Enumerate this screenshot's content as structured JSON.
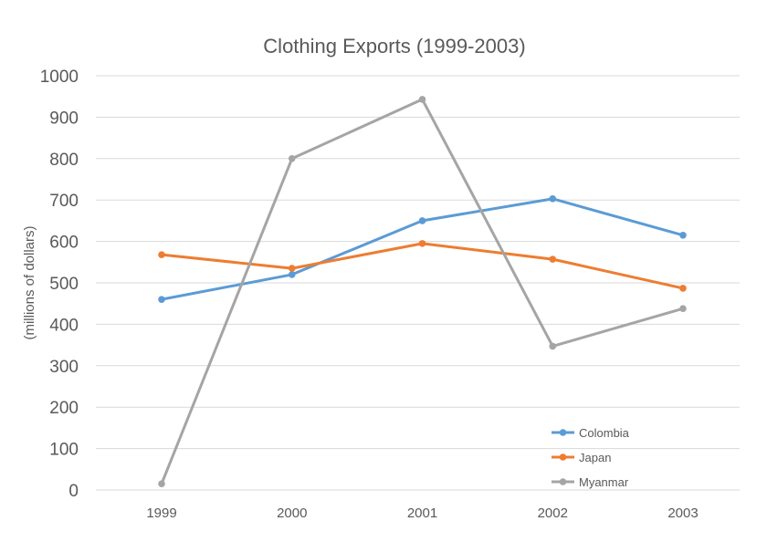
{
  "chart_data": {
    "type": "line",
    "title": "Clothing Exports (1999-2003)",
    "xlabel": "",
    "ylabel": "(millions of dollars)",
    "categories": [
      "1999",
      "2000",
      "2001",
      "2002",
      "2003"
    ],
    "ylim": [
      0,
      1000
    ],
    "yticks": [
      0,
      100,
      200,
      300,
      400,
      500,
      600,
      700,
      800,
      900,
      1000
    ],
    "grid": true,
    "legend_position": "bottom-right",
    "series": [
      {
        "name": "Colombia",
        "color": "#5b9bd5",
        "values": [
          460,
          520,
          650,
          703,
          615
        ]
      },
      {
        "name": "Japan",
        "color": "#ed7d31",
        "values": [
          568,
          535,
          595,
          557,
          487
        ]
      },
      {
        "name": "Myanmar",
        "color": "#a5a5a5",
        "values": [
          15,
          800,
          943,
          347,
          438
        ]
      }
    ]
  }
}
